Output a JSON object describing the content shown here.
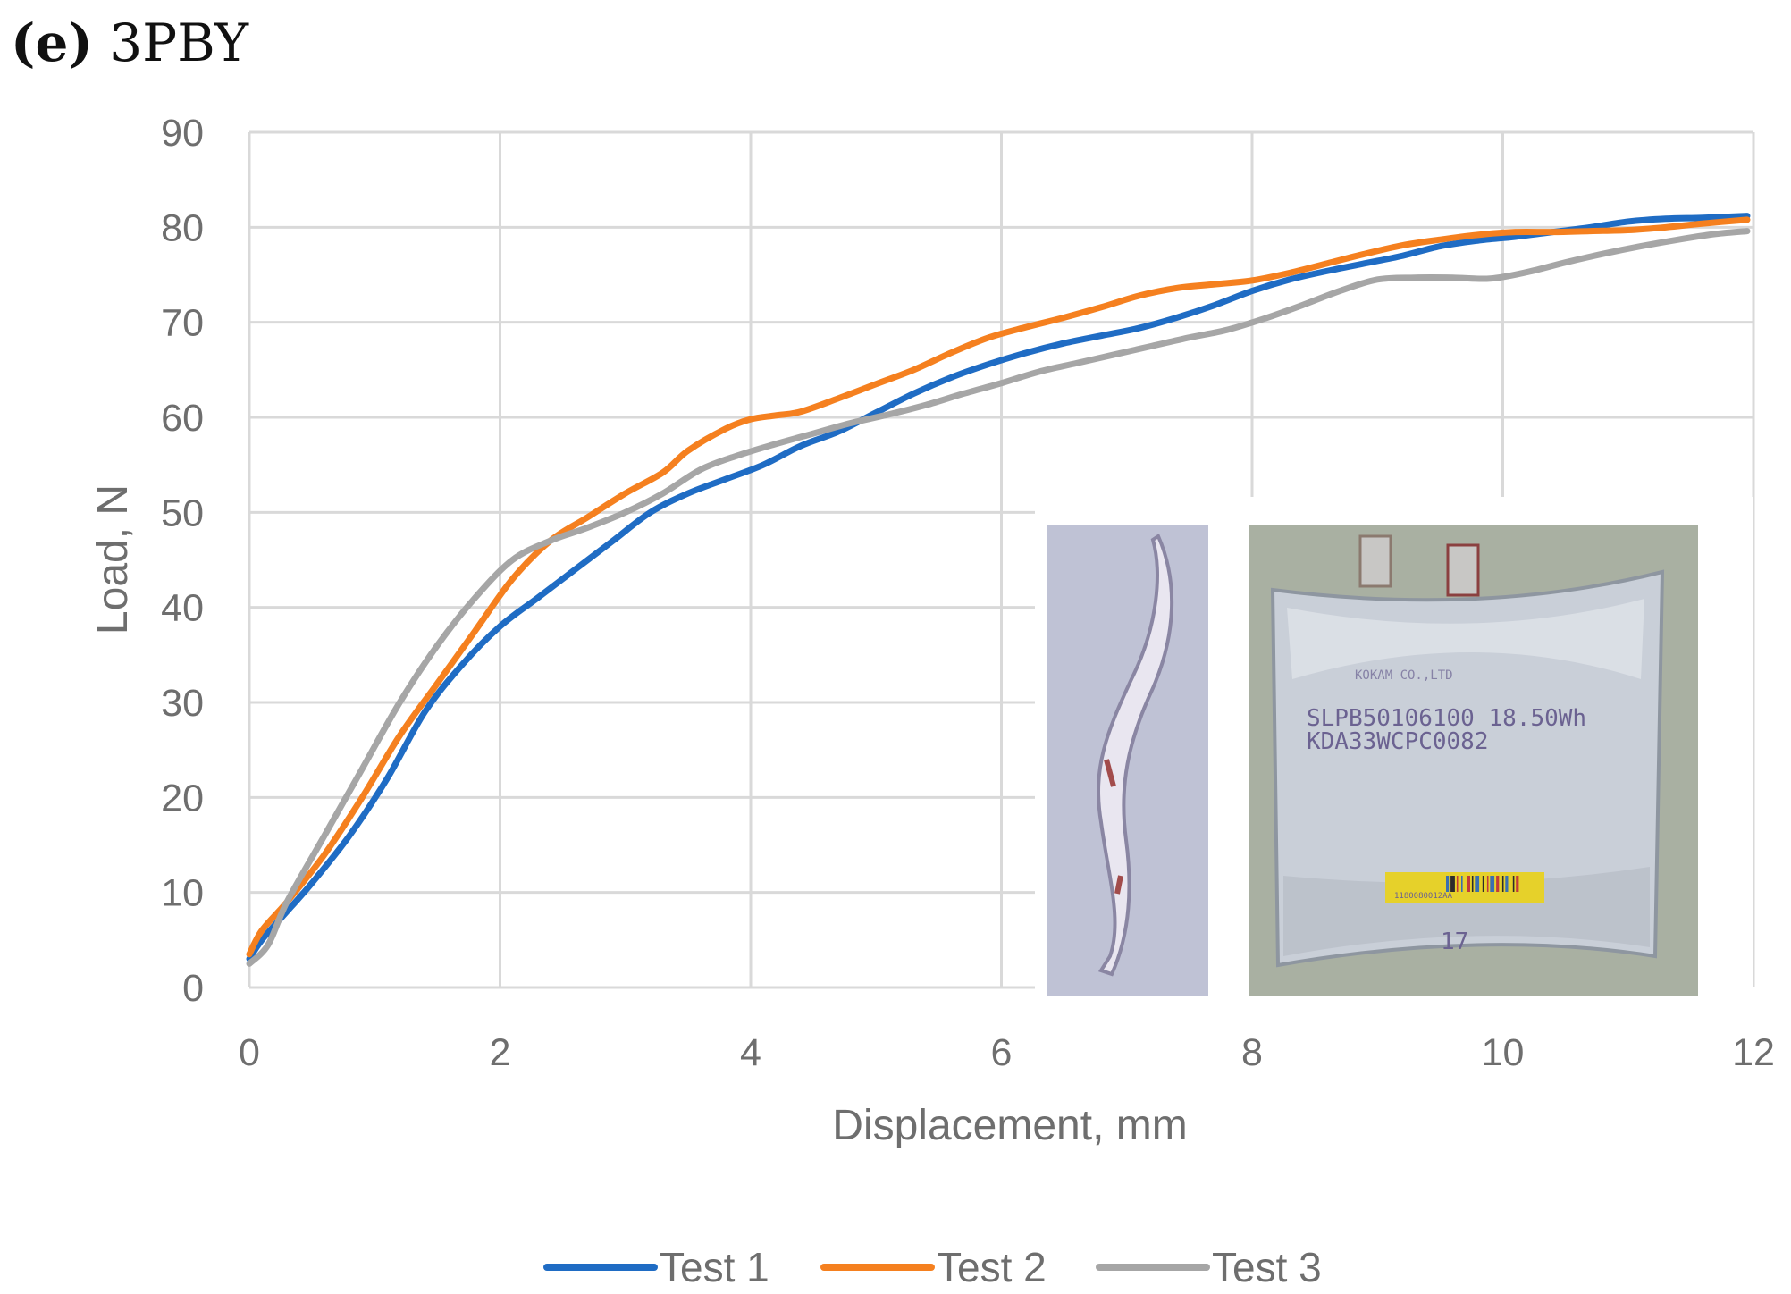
{
  "panel": {
    "letter": "(e)",
    "title": " 3PBY"
  },
  "colors": {
    "test1": "#1f6cc4",
    "test2": "#f5801f",
    "test3": "#a6a6a6",
    "grid": "#d9d9d9",
    "text": "#6e6e6e"
  },
  "chart_data": {
    "type": "line",
    "xlabel": "Displacement, mm",
    "ylabel": "Load, N",
    "xlim": [
      0,
      12
    ],
    "ylim": [
      0,
      90
    ],
    "xticks": [
      "0",
      "2",
      "4",
      "6",
      "8",
      "10",
      "12"
    ],
    "yticks": [
      "0",
      "10",
      "20",
      "30",
      "40",
      "50",
      "60",
      "70",
      "80",
      "90"
    ],
    "grid": true,
    "legend_position": "bottom",
    "series": [
      {
        "name": "Test 1",
        "color": "#1f6cc4",
        "x": [
          0,
          0.1,
          0.3,
          0.5,
          0.8,
          1.1,
          1.4,
          1.7,
          2.0,
          2.3,
          2.6,
          2.9,
          3.2,
          3.5,
          3.8,
          4.1,
          4.4,
          4.7,
          5.0,
          5.3,
          5.6,
          5.9,
          6.2,
          6.5,
          6.8,
          7.1,
          7.4,
          7.7,
          8.0,
          8.3,
          8.6,
          8.9,
          9.2,
          9.5,
          9.8,
          10.1,
          10.4,
          10.7,
          11.0,
          11.3,
          11.6,
          11.95
        ],
        "y": [
          3,
          5,
          8,
          11,
          16,
          22,
          29,
          34,
          38,
          41,
          44,
          47,
          50,
          52,
          53.5,
          55,
          57,
          58.5,
          60.5,
          62.5,
          64.2,
          65.6,
          66.8,
          67.8,
          68.6,
          69.4,
          70.5,
          71.8,
          73.3,
          74.5,
          75.4,
          76.2,
          77,
          78,
          78.6,
          79,
          79.5,
          80,
          80.6,
          80.9,
          81,
          81.2
        ]
      },
      {
        "name": "Test 2",
        "color": "#f5801f",
        "x": [
          0,
          0.1,
          0.3,
          0.6,
          0.9,
          1.2,
          1.5,
          1.8,
          2.1,
          2.4,
          2.7,
          3.0,
          3.3,
          3.5,
          3.8,
          4.0,
          4.2,
          4.4,
          4.7,
          5.0,
          5.3,
          5.6,
          5.9,
          6.2,
          6.5,
          6.8,
          7.1,
          7.4,
          7.7,
          8.0,
          8.3,
          8.6,
          8.9,
          9.2,
          9.5,
          9.8,
          10.1,
          10.4,
          10.7,
          11.0,
          11.3,
          11.6,
          11.95
        ],
        "y": [
          3.5,
          6,
          9,
          14,
          20,
          26.5,
          32,
          37.5,
          43,
          47,
          49.5,
          52,
          54.2,
          56.5,
          58.8,
          59.8,
          60.2,
          60.6,
          62,
          63.5,
          65,
          66.8,
          68.4,
          69.5,
          70.5,
          71.6,
          72.8,
          73.6,
          74,
          74.4,
          75.2,
          76.2,
          77.2,
          78.1,
          78.7,
          79.2,
          79.5,
          79.5,
          79.6,
          79.7,
          80,
          80.4,
          80.8
        ]
      },
      {
        "name": "Test 3",
        "color": "#a6a6a6",
        "x": [
          0,
          0.15,
          0.3,
          0.6,
          0.9,
          1.2,
          1.5,
          1.8,
          2.1,
          2.4,
          2.7,
          3.0,
          3.3,
          3.6,
          3.9,
          4.2,
          4.5,
          4.8,
          5.1,
          5.4,
          5.7,
          6.0,
          6.3,
          6.6,
          6.9,
          7.2,
          7.5,
          7.8,
          8.1,
          8.4,
          8.7,
          9.0,
          9.3,
          9.6,
          9.9,
          10.2,
          10.5,
          10.8,
          11.1,
          11.4,
          11.7,
          11.95
        ],
        "y": [
          2.5,
          4.5,
          9,
          16,
          23,
          30,
          36,
          41,
          45,
          47,
          48.4,
          50,
          52,
          54.5,
          56,
          57.2,
          58.3,
          59.4,
          60.3,
          61.3,
          62.5,
          63.6,
          64.8,
          65.7,
          66.6,
          67.5,
          68.4,
          69.2,
          70.4,
          71.8,
          73.3,
          74.5,
          74.7,
          74.7,
          74.6,
          75.3,
          76.3,
          77.2,
          78,
          78.7,
          79.3,
          79.6
        ]
      }
    ]
  },
  "inset": {
    "label_line1": "SLPB50106100 18.50Wh",
    "label_line2": "KDA33WCPC0082",
    "header_text": "KOKAM CO.,LTD",
    "barcode_text": "1180080012AA",
    "marker": "17"
  }
}
